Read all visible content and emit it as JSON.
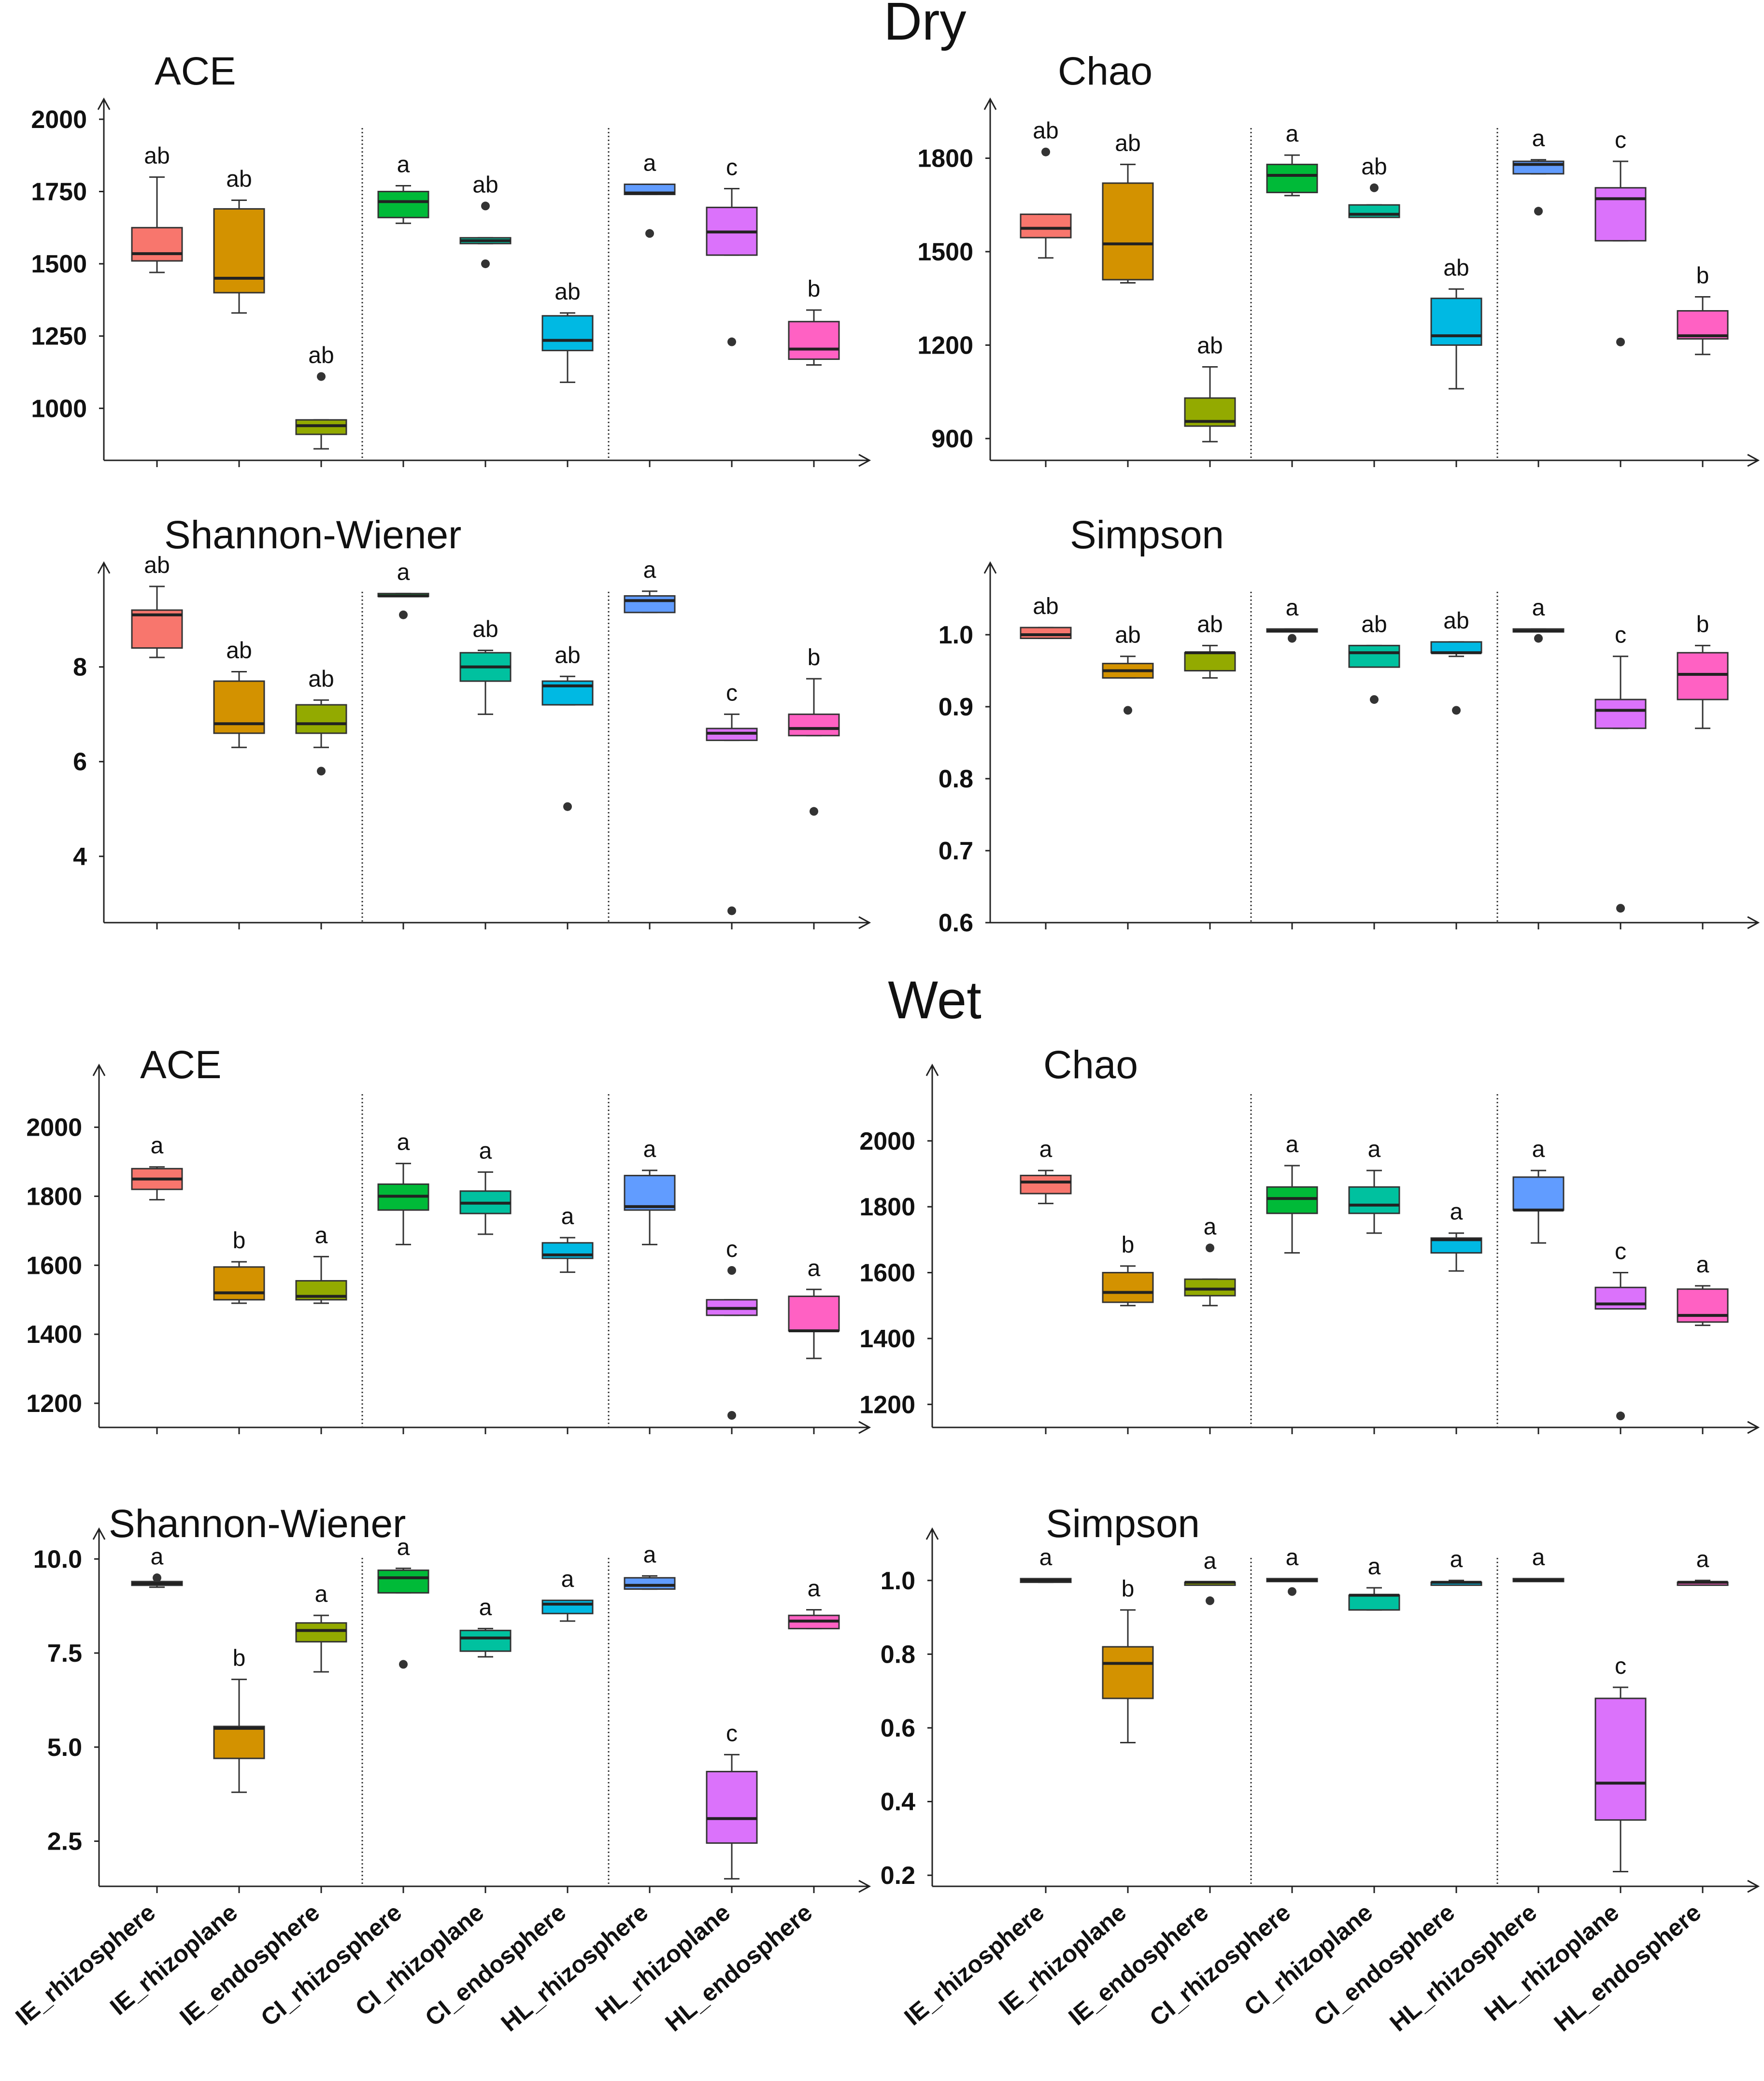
{
  "section_titles": [
    "Dry",
    "Wet"
  ],
  "colors": [
    "#f8766d",
    "#d39200",
    "#93aa00",
    "#00ba38",
    "#00c19f",
    "#00b9e3",
    "#619cff",
    "#db72fb",
    "#ff61c3"
  ],
  "chart_data": [
    {
      "type": "box",
      "title": "ACE",
      "section": "Dry",
      "categories": [
        "IE_rhizosphere",
        "IE_rhizoplane",
        "IE_endosphere",
        "CI_rhizosphere",
        "CI_rhizoplane",
        "CI_endosphere",
        "HL_rhizosphere",
        "HL_rhizoplane",
        "HL_endosphere"
      ],
      "ylim": [
        820,
        2070
      ],
      "yticks": [
        1000,
        1250,
        1500,
        1750,
        2000
      ],
      "tick_labels": [
        "1000",
        "1250",
        "1500",
        "1750",
        "2000"
      ],
      "boxes": [
        {
          "min": 1470,
          "q1": 1510,
          "median": 1535,
          "q3": 1625,
          "max": 1800,
          "outliers": [],
          "letter": "ab"
        },
        {
          "min": 1330,
          "q1": 1400,
          "median": 1450,
          "q3": 1690,
          "max": 1720,
          "outliers": [],
          "letter": "ab"
        },
        {
          "min": 860,
          "q1": 910,
          "median": 940,
          "q3": 960,
          "max": 960,
          "outliers": [
            1110
          ],
          "letter": "ab"
        },
        {
          "min": 1640,
          "q1": 1660,
          "median": 1715,
          "q3": 1750,
          "max": 1770,
          "outliers": [],
          "letter": "a"
        },
        {
          "min": 1570,
          "q1": 1570,
          "median": 1580,
          "q3": 1590,
          "max": 1590,
          "outliers": [
            1700,
            1500
          ],
          "letter": "ab"
        },
        {
          "min": 1090,
          "q1": 1200,
          "median": 1235,
          "q3": 1320,
          "max": 1330,
          "outliers": [],
          "letter": "ab"
        },
        {
          "min": 1740,
          "q1": 1740,
          "median": 1745,
          "q3": 1775,
          "max": 1775,
          "outliers": [
            1605
          ],
          "letter": "a"
        },
        {
          "min": 1530,
          "q1": 1530,
          "median": 1610,
          "q3": 1695,
          "max": 1760,
          "outliers": [
            1230
          ],
          "letter": "c"
        },
        {
          "min": 1150,
          "q1": 1170,
          "median": 1205,
          "q3": 1300,
          "max": 1340,
          "outliers": [],
          "letter": "b"
        }
      ]
    },
    {
      "type": "box",
      "title": "Chao",
      "section": "Dry",
      "categories": [
        "IE_rhizosphere",
        "IE_rhizoplane",
        "IE_endosphere",
        "CI_rhizosphere",
        "CI_rhizoplane",
        "CI_endosphere",
        "HL_rhizosphere",
        "HL_rhizoplane",
        "HL_endosphere"
      ],
      "ylim": [
        830,
        1990
      ],
      "yticks": [
        900,
        1200,
        1500,
        1800
      ],
      "tick_labels": [
        "900",
        "1200",
        "1500",
        "1800"
      ],
      "boxes": [
        {
          "min": 1480,
          "q1": 1545,
          "median": 1575,
          "q3": 1620,
          "max": 1620,
          "outliers": [
            1820
          ],
          "letter": "ab"
        },
        {
          "min": 1400,
          "q1": 1410,
          "median": 1525,
          "q3": 1720,
          "max": 1780,
          "outliers": [],
          "letter": "ab"
        },
        {
          "min": 890,
          "q1": 940,
          "median": 955,
          "q3": 1030,
          "max": 1130,
          "outliers": [],
          "letter": "ab"
        },
        {
          "min": 1680,
          "q1": 1690,
          "median": 1745,
          "q3": 1780,
          "max": 1810,
          "outliers": [],
          "letter": "a"
        },
        {
          "min": 1610,
          "q1": 1610,
          "median": 1620,
          "q3": 1650,
          "max": 1650,
          "outliers": [
            1705
          ],
          "letter": "ab"
        },
        {
          "min": 1060,
          "q1": 1200,
          "median": 1230,
          "q3": 1350,
          "max": 1380,
          "outliers": [],
          "letter": "ab"
        },
        {
          "min": 1750,
          "q1": 1750,
          "median": 1780,
          "q3": 1790,
          "max": 1795,
          "outliers": [
            1630
          ],
          "letter": "a"
        },
        {
          "min": 1535,
          "q1": 1535,
          "median": 1670,
          "q3": 1705,
          "max": 1790,
          "outliers": [
            1210
          ],
          "letter": "c"
        },
        {
          "min": 1170,
          "q1": 1220,
          "median": 1230,
          "q3": 1310,
          "max": 1355,
          "outliers": [],
          "letter": "b"
        }
      ]
    },
    {
      "type": "box",
      "title": "Shannon-Wiener",
      "section": "Dry",
      "categories": [
        "IE_rhizosphere",
        "IE_rhizoplane",
        "IE_endosphere",
        "CI_rhizosphere",
        "CI_rhizoplane",
        "CI_endosphere",
        "HL_rhizosphere",
        "HL_rhizoplane",
        "HL_endosphere"
      ],
      "ylim": [
        2.6,
        10.2
      ],
      "yticks": [
        4,
        6,
        8
      ],
      "tick_labels": [
        "4",
        "6",
        "8"
      ],
      "boxes": [
        {
          "min": 8.2,
          "q1": 8.4,
          "median": 9.1,
          "q3": 9.2,
          "max": 9.7,
          "outliers": [],
          "letter": "ab"
        },
        {
          "min": 6.3,
          "q1": 6.6,
          "median": 6.8,
          "q3": 7.7,
          "max": 7.9,
          "outliers": [],
          "letter": "ab"
        },
        {
          "min": 6.3,
          "q1": 6.6,
          "median": 6.8,
          "q3": 7.2,
          "max": 7.3,
          "outliers": [
            5.8
          ],
          "letter": "ab"
        },
        {
          "min": 9.5,
          "q1": 9.5,
          "median": 9.5,
          "q3": 9.55,
          "max": 9.55,
          "outliers": [
            9.1
          ],
          "letter": "a"
        },
        {
          "min": 7.0,
          "q1": 7.7,
          "median": 8.0,
          "q3": 8.3,
          "max": 8.35,
          "outliers": [],
          "letter": "ab"
        },
        {
          "min": 7.2,
          "q1": 7.2,
          "median": 7.6,
          "q3": 7.7,
          "max": 7.8,
          "outliers": [
            5.05
          ],
          "letter": "ab"
        },
        {
          "min": 9.15,
          "q1": 9.15,
          "median": 9.4,
          "q3": 9.5,
          "max": 9.6,
          "outliers": [],
          "letter": "a"
        },
        {
          "min": 6.45,
          "q1": 6.45,
          "median": 6.6,
          "q3": 6.7,
          "max": 7.0,
          "outliers": [
            2.85
          ],
          "letter": "c"
        },
        {
          "min": 6.55,
          "q1": 6.55,
          "median": 6.7,
          "q3": 7.0,
          "max": 7.75,
          "outliers": [
            4.95
          ],
          "letter": "b"
        }
      ]
    },
    {
      "type": "box",
      "title": "Simpson",
      "section": "Dry",
      "categories": [
        "IE_rhizosphere",
        "IE_rhizoplane",
        "IE_endosphere",
        "CI_rhizosphere",
        "CI_rhizoplane",
        "CI_endosphere",
        "HL_rhizosphere",
        "HL_rhizoplane",
        "HL_endosphere"
      ],
      "ylim": [
        0.6,
        1.1
      ],
      "yticks": [
        0.6,
        0.7,
        0.8,
        0.9,
        1.0
      ],
      "tick_labels": [
        "0.6",
        "0.7",
        "0.8",
        "0.9",
        "1.0"
      ],
      "boxes": [
        {
          "min": 0.995,
          "q1": 0.995,
          "median": 1.0,
          "q3": 1.01,
          "max": 1.01,
          "outliers": [],
          "letter": "ab"
        },
        {
          "min": 0.94,
          "q1": 0.94,
          "median": 0.95,
          "q3": 0.96,
          "max": 0.97,
          "outliers": [
            0.895
          ],
          "letter": "ab"
        },
        {
          "min": 0.94,
          "q1": 0.95,
          "median": 0.975,
          "q3": 0.975,
          "max": 0.985,
          "outliers": [],
          "letter": "ab"
        },
        {
          "min": 1.005,
          "q1": 1.005,
          "median": 1.005,
          "q3": 1.008,
          "max": 1.008,
          "outliers": [
            0.995
          ],
          "letter": "a"
        },
        {
          "min": 0.955,
          "q1": 0.955,
          "median": 0.975,
          "q3": 0.985,
          "max": 0.985,
          "outliers": [
            0.91
          ],
          "letter": "ab"
        },
        {
          "min": 0.97,
          "q1": 0.975,
          "median": 0.975,
          "q3": 0.99,
          "max": 0.99,
          "outliers": [
            0.895
          ],
          "letter": "ab"
        },
        {
          "min": 1.005,
          "q1": 1.005,
          "median": 1.005,
          "q3": 1.008,
          "max": 1.008,
          "outliers": [
            0.995
          ],
          "letter": "a"
        },
        {
          "min": 0.87,
          "q1": 0.87,
          "median": 0.895,
          "q3": 0.91,
          "max": 0.97,
          "outliers": [
            0.62
          ],
          "letter": "c"
        },
        {
          "min": 0.87,
          "q1": 0.91,
          "median": 0.945,
          "q3": 0.975,
          "max": 0.985,
          "outliers": [],
          "letter": "b"
        }
      ]
    },
    {
      "type": "box",
      "title": "ACE",
      "section": "Wet",
      "categories": [
        "IE_rhizosphere",
        "IE_rhizoplane",
        "IE_endosphere",
        "CI_rhizosphere",
        "CI_rhizoplane",
        "CI_endosphere",
        "HL_rhizosphere",
        "HL_rhizoplane",
        "HL_endosphere"
      ],
      "ylim": [
        1130,
        2180
      ],
      "yticks": [
        1200,
        1400,
        1600,
        1800,
        2000
      ],
      "tick_labels": [
        "1200",
        "1400",
        "1600",
        "1800",
        "2000"
      ],
      "boxes": [
        {
          "min": 1790,
          "q1": 1820,
          "median": 1850,
          "q3": 1880,
          "max": 1885,
          "outliers": [],
          "letter": "a"
        },
        {
          "min": 1490,
          "q1": 1500,
          "median": 1520,
          "q3": 1595,
          "max": 1610,
          "outliers": [],
          "letter": "b"
        },
        {
          "min": 1490,
          "q1": 1500,
          "median": 1510,
          "q3": 1555,
          "max": 1625,
          "outliers": [],
          "letter": "a"
        },
        {
          "min": 1660,
          "q1": 1760,
          "median": 1800,
          "q3": 1835,
          "max": 1895,
          "outliers": [],
          "letter": "a"
        },
        {
          "min": 1690,
          "q1": 1750,
          "median": 1780,
          "q3": 1815,
          "max": 1870,
          "outliers": [],
          "letter": "a"
        },
        {
          "min": 1580,
          "q1": 1620,
          "median": 1630,
          "q3": 1665,
          "max": 1680,
          "outliers": [],
          "letter": "a"
        },
        {
          "min": 1660,
          "q1": 1760,
          "median": 1770,
          "q3": 1860,
          "max": 1875,
          "outliers": [],
          "letter": "a"
        },
        {
          "min": 1455,
          "q1": 1455,
          "median": 1475,
          "q3": 1500,
          "max": 1500,
          "outliers": [
            1585,
            1165
          ],
          "letter": "c"
        },
        {
          "min": 1330,
          "q1": 1410,
          "median": 1410,
          "q3": 1510,
          "max": 1530,
          "outliers": [],
          "letter": "a"
        }
      ]
    },
    {
      "type": "box",
      "title": "Chao",
      "section": "Wet",
      "categories": [
        "IE_rhizosphere",
        "IE_rhizoplane",
        "IE_endosphere",
        "CI_rhizosphere",
        "CI_rhizoplane",
        "CI_endosphere",
        "HL_rhizosphere",
        "HL_rhizoplane",
        "HL_endosphere"
      ],
      "ylim": [
        1130,
        2230
      ],
      "yticks": [
        1200,
        1400,
        1600,
        1800,
        2000
      ],
      "tick_labels": [
        "1200",
        "1400",
        "1600",
        "1800",
        "2000"
      ],
      "boxes": [
        {
          "min": 1810,
          "q1": 1840,
          "median": 1875,
          "q3": 1895,
          "max": 1910,
          "outliers": [],
          "letter": "a"
        },
        {
          "min": 1500,
          "q1": 1510,
          "median": 1540,
          "q3": 1600,
          "max": 1620,
          "outliers": [],
          "letter": "b"
        },
        {
          "min": 1500,
          "q1": 1530,
          "median": 1550,
          "q3": 1580,
          "max": 1580,
          "outliers": [
            1675
          ],
          "letter": "a"
        },
        {
          "min": 1660,
          "q1": 1780,
          "median": 1825,
          "q3": 1860,
          "max": 1925,
          "outliers": [],
          "letter": "a"
        },
        {
          "min": 1720,
          "q1": 1780,
          "median": 1805,
          "q3": 1860,
          "max": 1910,
          "outliers": [],
          "letter": "a"
        },
        {
          "min": 1605,
          "q1": 1660,
          "median": 1700,
          "q3": 1705,
          "max": 1720,
          "outliers": [],
          "letter": "a"
        },
        {
          "min": 1690,
          "q1": 1790,
          "median": 1790,
          "q3": 1890,
          "max": 1910,
          "outliers": [],
          "letter": "a"
        },
        {
          "min": 1490,
          "q1": 1490,
          "median": 1505,
          "q3": 1555,
          "max": 1600,
          "outliers": [
            1165
          ],
          "letter": "c"
        },
        {
          "min": 1440,
          "q1": 1450,
          "median": 1470,
          "q3": 1550,
          "max": 1560,
          "outliers": [],
          "letter": "a"
        }
      ]
    },
    {
      "type": "box",
      "title": "Shannon-Wiener",
      "section": "Wet",
      "categories": [
        "IE_rhizosphere",
        "IE_rhizoplane",
        "IE_endosphere",
        "CI_rhizosphere",
        "CI_rhizoplane",
        "CI_endosphere",
        "HL_rhizosphere",
        "HL_rhizoplane",
        "HL_endosphere"
      ],
      "ylim": [
        1.3,
        10.8
      ],
      "yticks": [
        2.5,
        5.0,
        7.5,
        10.0
      ],
      "tick_labels": [
        "2.5",
        "5.0",
        "7.5",
        "10.0"
      ],
      "boxes": [
        {
          "min": 9.25,
          "q1": 9.3,
          "median": 9.35,
          "q3": 9.4,
          "max": 9.4,
          "outliers": [
            9.5
          ],
          "letter": "a"
        },
        {
          "min": 3.8,
          "q1": 4.7,
          "median": 5.5,
          "q3": 5.55,
          "max": 6.8,
          "outliers": [],
          "letter": "b"
        },
        {
          "min": 7.0,
          "q1": 7.8,
          "median": 8.1,
          "q3": 8.3,
          "max": 8.5,
          "outliers": [],
          "letter": "a"
        },
        {
          "min": 9.1,
          "q1": 9.1,
          "median": 9.5,
          "q3": 9.7,
          "max": 9.75,
          "outliers": [
            7.2
          ],
          "letter": "a"
        },
        {
          "min": 7.4,
          "q1": 7.55,
          "median": 7.9,
          "q3": 8.1,
          "max": 8.15,
          "outliers": [],
          "letter": "a"
        },
        {
          "min": 8.35,
          "q1": 8.55,
          "median": 8.8,
          "q3": 8.9,
          "max": 8.9,
          "outliers": [],
          "letter": "a"
        },
        {
          "min": 9.2,
          "q1": 9.2,
          "median": 9.3,
          "q3": 9.5,
          "max": 9.55,
          "outliers": [],
          "letter": "a"
        },
        {
          "min": 1.5,
          "q1": 2.45,
          "median": 3.1,
          "q3": 4.35,
          "max": 4.8,
          "outliers": [],
          "letter": "c"
        },
        {
          "min": 8.15,
          "q1": 8.15,
          "median": 8.35,
          "q3": 8.5,
          "max": 8.65,
          "outliers": [],
          "letter": "a"
        }
      ]
    },
    {
      "type": "box",
      "title": "Simpson",
      "section": "Wet",
      "categories": [
        "IE_rhizosphere",
        "IE_rhizoplane",
        "IE_endosphere",
        "CI_rhizosphere",
        "CI_rhizoplane",
        "CI_endosphere",
        "HL_rhizosphere",
        "HL_rhizoplane",
        "HL_endosphere"
      ],
      "ylim": [
        0.17,
        1.14
      ],
      "yticks": [
        0.2,
        0.4,
        0.6,
        0.8,
        1.0
      ],
      "tick_labels": [
        "0.2",
        "0.4",
        "0.6",
        "0.8",
        "1.0"
      ],
      "boxes": [
        {
          "min": 0.995,
          "q1": 0.995,
          "median": 1.0,
          "q3": 1.005,
          "max": 1.005,
          "outliers": [],
          "letter": "a"
        },
        {
          "min": 0.56,
          "q1": 0.68,
          "median": 0.775,
          "q3": 0.82,
          "max": 0.92,
          "outliers": [],
          "letter": "b"
        },
        {
          "min": 0.995,
          "q1": 0.995,
          "median": 0.995,
          "q3": 0.995,
          "max": 0.995,
          "outliers": [
            0.945
          ],
          "letter": "a"
        },
        {
          "min": 1.0,
          "q1": 1.0,
          "median": 1.0,
          "q3": 1.005,
          "max": 1.005,
          "outliers": [
            0.97
          ],
          "letter": "a"
        },
        {
          "min": 0.92,
          "q1": 0.92,
          "median": 0.96,
          "q3": 0.96,
          "max": 0.98,
          "outliers": [],
          "letter": "a"
        },
        {
          "min": 0.99,
          "q1": 0.99,
          "median": 0.995,
          "q3": 0.995,
          "max": 1.0,
          "outliers": [],
          "letter": "a"
        },
        {
          "min": 1.0,
          "q1": 1.0,
          "median": 1.0,
          "q3": 1.005,
          "max": 1.005,
          "outliers": [],
          "letter": "a"
        },
        {
          "min": 0.21,
          "q1": 0.35,
          "median": 0.45,
          "q3": 0.68,
          "max": 0.71,
          "outliers": [],
          "letter": "c"
        },
        {
          "min": 0.99,
          "q1": 0.99,
          "median": 0.995,
          "q3": 0.995,
          "max": 1.0,
          "outliers": [],
          "letter": "a"
        }
      ]
    }
  ]
}
